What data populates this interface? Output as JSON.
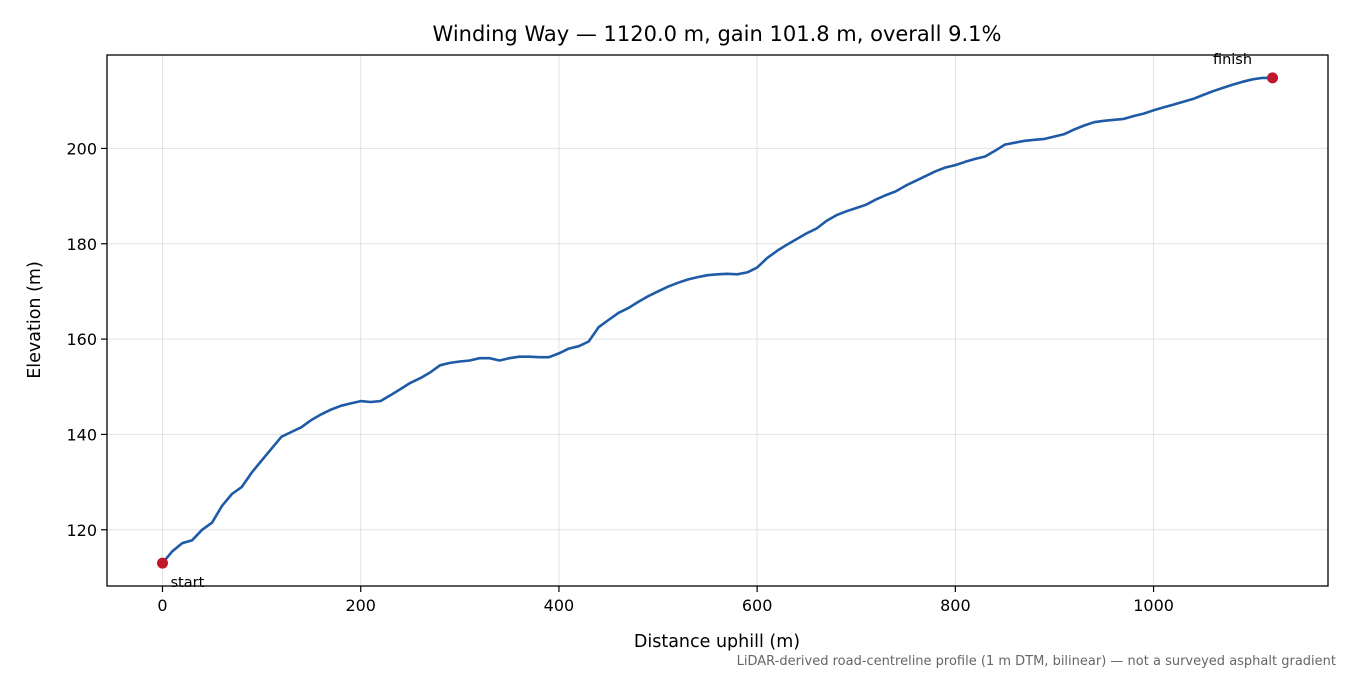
{
  "chart_data": {
    "type": "line",
    "title": "Winding Way — 1120.0 m, gain 101.8 m, overall 9.1%",
    "xlabel": "Distance uphill (m)",
    "ylabel": "Elevation (m)",
    "footnote": "LiDAR-derived road-centreline profile (1 m DTM, bilinear) — not a surveyed asphalt gradient",
    "xlim": [
      -56,
      1176
    ],
    "ylim": [
      108.2,
      219.6
    ],
    "xticks": [
      0,
      200,
      400,
      600,
      800,
      1000
    ],
    "yticks": [
      120,
      140,
      160,
      180,
      200
    ],
    "grid": true,
    "line_color": "#1f5aa6",
    "marker_color": "#c0182a",
    "series": [
      {
        "x": [
          0,
          10,
          20,
          30,
          40,
          50,
          60,
          70,
          80,
          90,
          100,
          110,
          120,
          130,
          140,
          150,
          160,
          170,
          180,
          190,
          200,
          210,
          220,
          230,
          240,
          250,
          260,
          270,
          280,
          290,
          300,
          310,
          320,
          330,
          340,
          350,
          360,
          370,
          380,
          390,
          400,
          410,
          420,
          430,
          440,
          450,
          460,
          470,
          480,
          490,
          500,
          510,
          520,
          530,
          540,
          550,
          560,
          570,
          580,
          590,
          600,
          610,
          620,
          630,
          640,
          650,
          660,
          670,
          680,
          690,
          700,
          710,
          720,
          730,
          740,
          750,
          760,
          770,
          780,
          790,
          800,
          810,
          820,
          830,
          840,
          850,
          860,
          870,
          880,
          890,
          900,
          910,
          920,
          930,
          940,
          950,
          960,
          970,
          980,
          990,
          1000,
          1010,
          1020,
          1030,
          1040,
          1050,
          1060,
          1070,
          1080,
          1090,
          1100,
          1110,
          1120
        ],
        "y": [
          113.0,
          115.5,
          117.2,
          117.8,
          120.0,
          121.5,
          125.0,
          127.5,
          129.0,
          132.0,
          134.5,
          137.0,
          139.5,
          140.5,
          141.5,
          143.0,
          144.2,
          145.2,
          146.0,
          146.5,
          147.0,
          146.8,
          147.0,
          148.2,
          149.5,
          150.8,
          151.8,
          153.0,
          154.5,
          155.0,
          155.3,
          155.5,
          156.0,
          156.0,
          155.5,
          156.0,
          156.3,
          156.3,
          156.2,
          156.2,
          157.0,
          158.0,
          158.5,
          159.5,
          162.5,
          164.0,
          165.5,
          166.5,
          167.8,
          169.0,
          170.0,
          171.0,
          171.8,
          172.5,
          173.0,
          173.4,
          173.6,
          173.7,
          173.6,
          174.0,
          175.0,
          177.0,
          178.5,
          179.8,
          181.0,
          182.2,
          183.2,
          184.8,
          186.0,
          186.8,
          187.5,
          188.2,
          189.3,
          190.2,
          191.0,
          192.2,
          193.2,
          194.2,
          195.2,
          196.0,
          196.5,
          197.2,
          197.8,
          198.3,
          199.5,
          200.8,
          201.2,
          201.6,
          201.8,
          202.0,
          202.5,
          203.0,
          204.0,
          204.8,
          205.5,
          205.8,
          206.0,
          206.2,
          206.8,
          207.3,
          208.0,
          208.6,
          209.2,
          209.8,
          210.4,
          211.2,
          212.0,
          212.7,
          213.4,
          214.0,
          214.5,
          214.8,
          214.8
        ]
      }
    ],
    "annotations": {
      "start": {
        "label": "start",
        "x": 0,
        "y": 113.0
      },
      "finish": {
        "label": "finish",
        "x": 1120,
        "y": 214.8
      }
    }
  }
}
